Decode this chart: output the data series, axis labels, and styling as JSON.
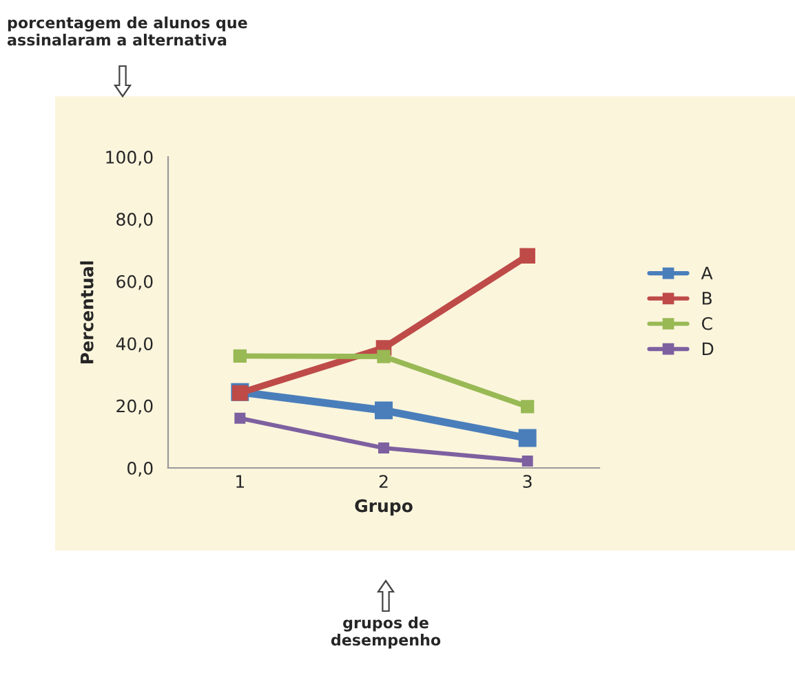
{
  "chart_data": {
    "type": "line",
    "xlabel": "Grupo",
    "ylabel": "Percentual",
    "categories": [
      "1",
      "2",
      "3"
    ],
    "series": [
      {
        "name": "A",
        "color": "#4a7ebb",
        "values": [
          24.4,
          18.5,
          9.6
        ]
      },
      {
        "name": "B",
        "color": "#be4b48",
        "values": [
          24.1,
          38.6,
          68.2
        ]
      },
      {
        "name": "C",
        "color": "#98b954",
        "values": [
          36.0,
          35.8,
          19.7
        ]
      },
      {
        "name": "D",
        "color": "#7d60a0",
        "values": [
          16.0,
          6.4,
          2.2
        ]
      }
    ],
    "ylim": [
      0,
      100
    ],
    "yticks": [
      {
        "value": 0,
        "label": "0,0"
      },
      {
        "value": 20,
        "label": "20,0"
      },
      {
        "value": 40,
        "label": "40,0"
      },
      {
        "value": 60,
        "label": "60,0"
      },
      {
        "value": 80,
        "label": "80,0"
      },
      {
        "value": 100,
        "label": "100,0"
      }
    ],
    "annotations": [
      "porcentagem de alunos que\nassinalaram a alternativa",
      "grupos de\ndesempenho"
    ],
    "grid": false,
    "legend": "right",
    "marker": "square",
    "line_style": "solid"
  }
}
